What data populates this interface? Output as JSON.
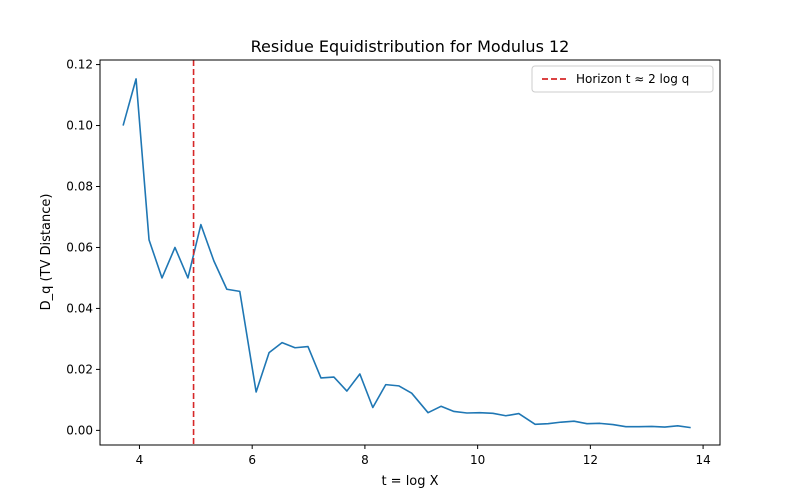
{
  "chart_data": {
    "type": "line",
    "title": "Residue Equidistribution for Modulus 12",
    "xlabel": "t = log X",
    "ylabel": "D_q (TV Distance)",
    "xlim": [
      3.3,
      14.3
    ],
    "ylim": [
      -0.0048,
      0.1215
    ],
    "xticks": [
      4,
      6,
      8,
      10,
      12,
      14
    ],
    "yticks": [
      0.0,
      0.02,
      0.04,
      0.06,
      0.08,
      0.1,
      0.12
    ],
    "yticks_labels": [
      "0.00",
      "0.02",
      "0.04",
      "0.06",
      "0.08",
      "0.10",
      "0.12"
    ],
    "xticks_labels": [
      "4",
      "6",
      "8",
      "10",
      "12",
      "14"
    ],
    "grid": false,
    "legend_position": "top-right",
    "series": [
      {
        "color": "#1f77b4",
        "x": [
          3.71,
          3.94,
          4.17,
          4.4,
          4.63,
          4.86,
          5.09,
          5.32,
          5.55,
          5.78,
          6.07,
          6.3,
          6.53,
          6.76,
          6.99,
          7.22,
          7.45,
          7.68,
          7.91,
          8.14,
          8.37,
          8.6,
          8.83,
          9.12,
          9.35,
          9.58,
          9.81,
          10.04,
          10.27,
          10.5,
          10.73,
          11.02,
          11.25,
          11.48,
          11.71,
          11.94,
          12.17,
          12.4,
          12.63,
          12.86,
          13.09,
          13.32,
          13.55,
          13.78
        ],
        "y": [
          0.1,
          0.1153,
          0.0625,
          0.05,
          0.06,
          0.05,
          0.0675,
          0.0556,
          0.0463,
          0.0456,
          0.0126,
          0.0255,
          0.0288,
          0.0271,
          0.0275,
          0.0172,
          0.0175,
          0.0129,
          0.0185,
          0.0075,
          0.015,
          0.0146,
          0.0122,
          0.0058,
          0.0079,
          0.0062,
          0.0057,
          0.0058,
          0.0056,
          0.0048,
          0.0055,
          0.002,
          0.0022,
          0.0027,
          0.003,
          0.0022,
          0.0023,
          0.0019,
          0.0012,
          0.0012,
          0.0013,
          0.0011,
          0.0015,
          0.0009
        ]
      }
    ],
    "vline": {
      "x": 4.96,
      "label": "Horizon t ≈ 2 log q",
      "color": "#d62728",
      "style": "dashed"
    }
  }
}
